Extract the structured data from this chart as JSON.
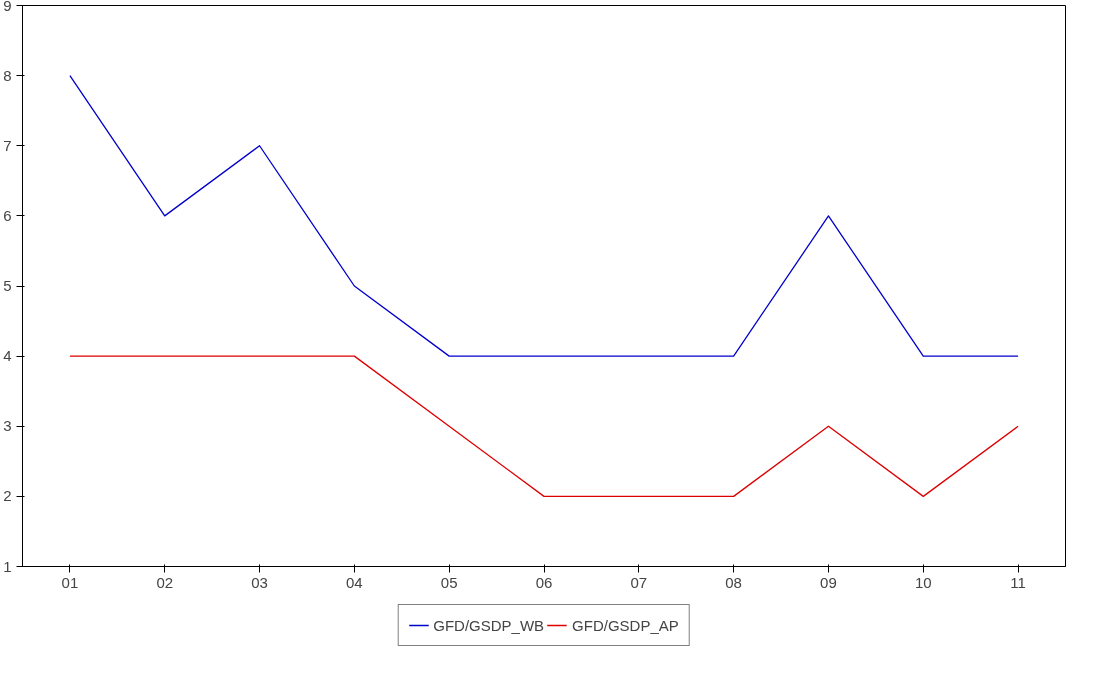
{
  "chart_data": {
    "type": "line",
    "categories": [
      "01",
      "02",
      "03",
      "04",
      "05",
      "06",
      "07",
      "08",
      "09",
      "10",
      "11"
    ],
    "series": [
      {
        "name": "GFD/GSDP_WB",
        "color": "#0000cc",
        "values": [
          8,
          6,
          7,
          5,
          4,
          4,
          4,
          4,
          6,
          4,
          4
        ]
      },
      {
        "name": "GFD/GSDP_AP",
        "color": "#dd0000",
        "values": [
          4,
          4,
          4,
          4,
          3,
          2,
          2,
          2,
          3,
          2,
          3
        ]
      }
    ],
    "ylim": [
      1,
      9
    ],
    "yticks": [
      1,
      2,
      3,
      4,
      5,
      6,
      7,
      8,
      9
    ],
    "grid": false,
    "legend": "bottom",
    "marker": "none",
    "line_style": "solid"
  }
}
